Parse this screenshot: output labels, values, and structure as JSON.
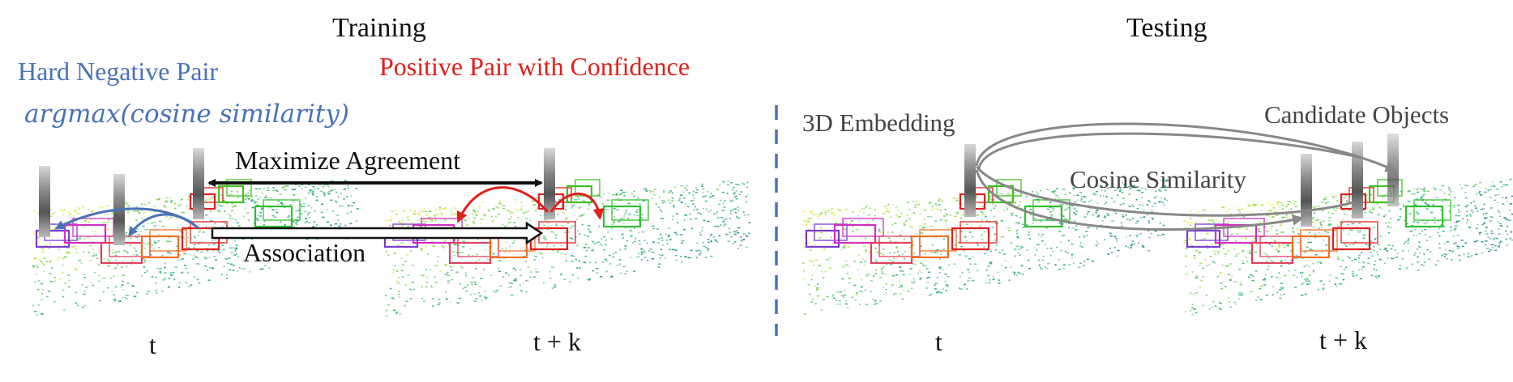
{
  "training": {
    "title": "Training",
    "hard_negative": "Hard Negative Pair",
    "formula": "argmax(cosine similarity)",
    "positive_pair": "Positive Pair with Confidence",
    "maximize": "Maximize Agreement",
    "association": "Association",
    "frame_t": "t",
    "frame_tk": "t + k"
  },
  "testing": {
    "title": "Testing",
    "embedding": "3D Embedding",
    "candidates": "Candidate Objects",
    "cosine": "Cosine Similarity",
    "frame_t": "t",
    "frame_tk": "t + k"
  },
  "colors": {
    "blue": "#4a72b8",
    "red": "#e0201c",
    "gray": "#777777",
    "divider": "#4a72b8"
  }
}
